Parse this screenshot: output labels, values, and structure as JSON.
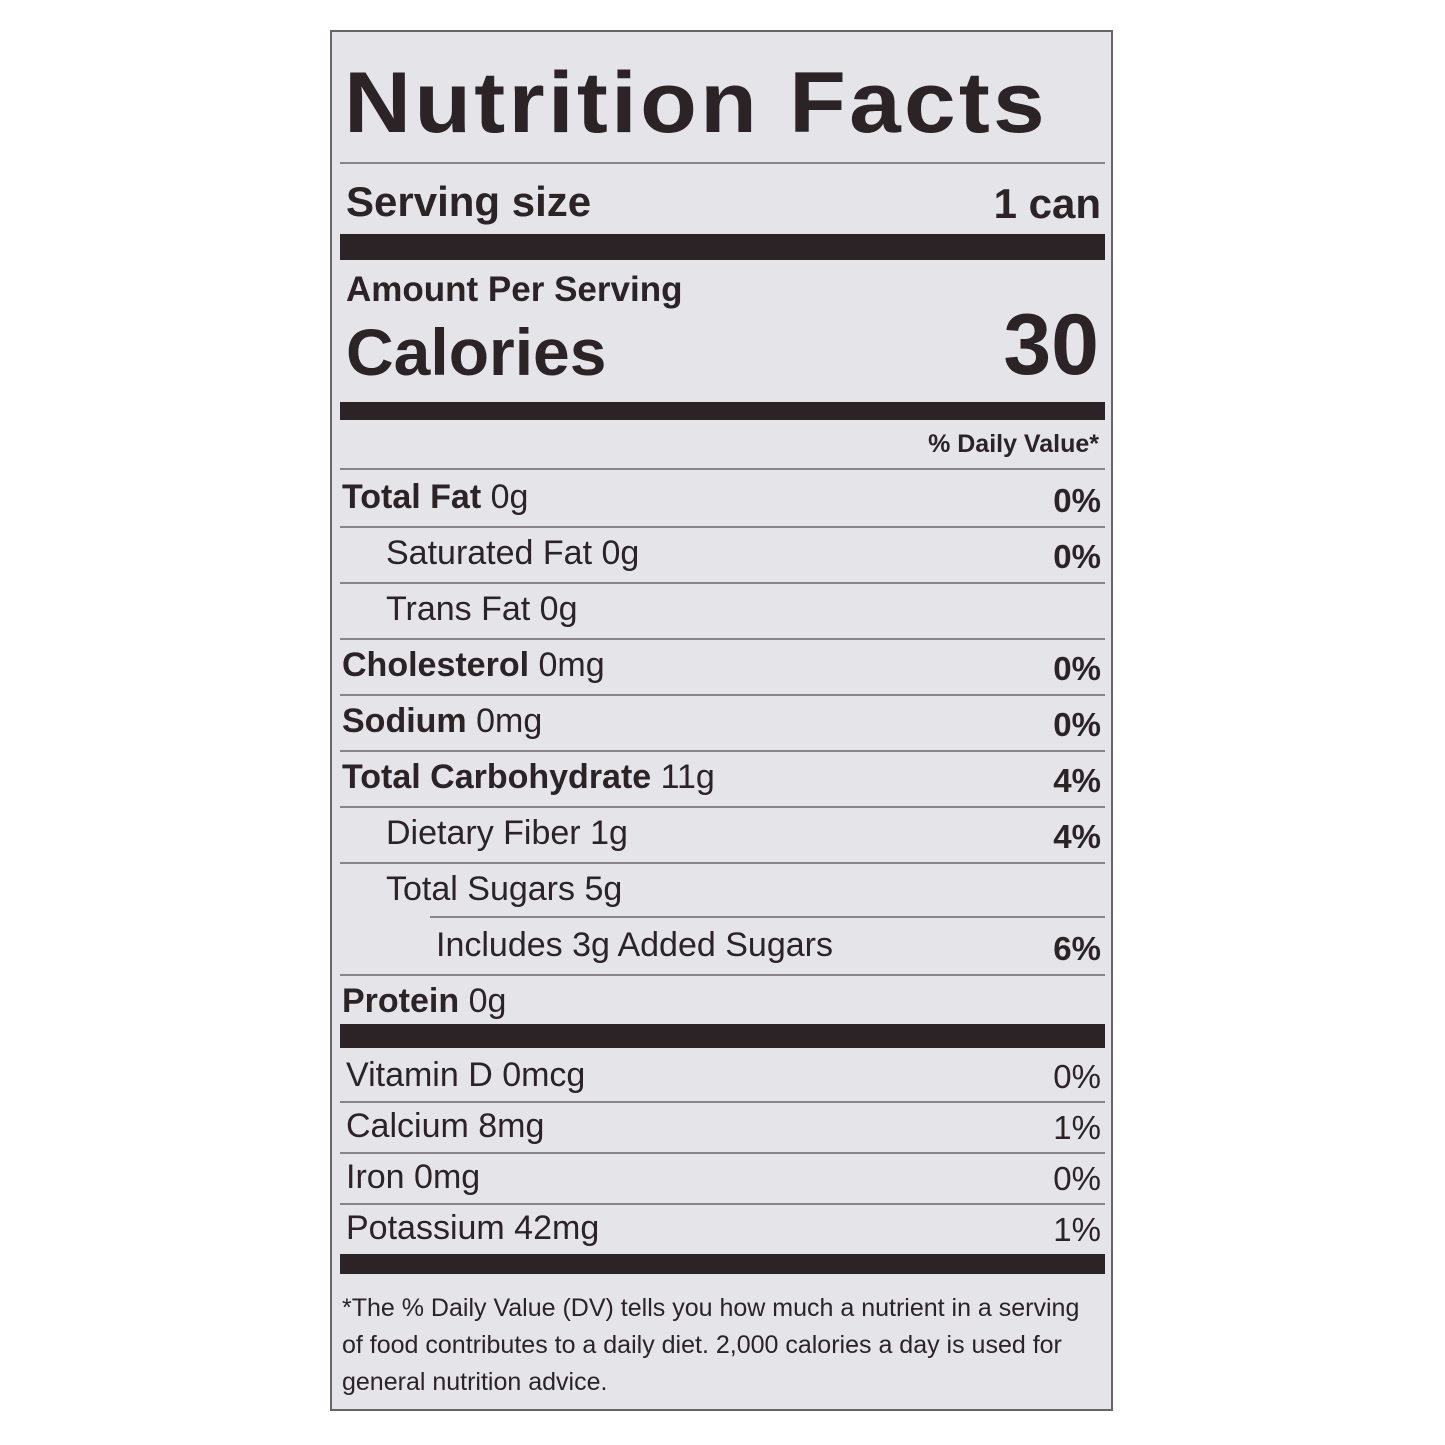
{
  "title": "Nutrition Facts",
  "serving": {
    "label": "Serving size",
    "value": "1 can"
  },
  "amount_per_serving": "Amount Per Serving",
  "calories": {
    "label": "Calories",
    "value": "30"
  },
  "daily_value_header": "% Daily Value*",
  "nutrients": [
    {
      "name": "Total Fat",
      "amount": "0g",
      "dv": "0%",
      "bold": true,
      "indent": 0
    },
    {
      "name": "Saturated Fat",
      "amount": "0g",
      "dv": "0%",
      "bold": false,
      "indent": 1
    },
    {
      "name": "Trans Fat",
      "amount": "0g",
      "dv": "",
      "bold": false,
      "indent": 1
    },
    {
      "name": "Cholesterol",
      "amount": "0mg",
      "dv": "0%",
      "bold": true,
      "indent": 0
    },
    {
      "name": "Sodium",
      "amount": "0mg",
      "dv": "0%",
      "bold": true,
      "indent": 0
    },
    {
      "name": "Total Carbohydrate",
      "amount": "11g",
      "dv": "4%",
      "bold": true,
      "indent": 0
    },
    {
      "name": "Dietary Fiber",
      "amount": "1g",
      "dv": "4%",
      "bold": false,
      "indent": 1
    },
    {
      "name": "Total Sugars",
      "amount": "5g",
      "dv": "",
      "bold": false,
      "indent": 1
    },
    {
      "name": "Includes 3g Added Sugars",
      "amount": "",
      "dv": "6%",
      "bold": false,
      "indent": 2
    },
    {
      "name": "Protein",
      "amount": "0g",
      "dv": "",
      "bold": true,
      "indent": 0
    }
  ],
  "vitamins": [
    {
      "name": "Vitamin D 0mcg",
      "dv": "0%"
    },
    {
      "name": "Calcium 8mg",
      "dv": "1%"
    },
    {
      "name": "Iron 0mg",
      "dv": "0%"
    },
    {
      "name": "Potassium 42mg",
      "dv": "1%"
    }
  ],
  "footnote": "*The % Daily Value (DV) tells you how much a nutrient in a serving of food contributes to a daily diet. 2,000 calories a day is used for general nutrition advice."
}
